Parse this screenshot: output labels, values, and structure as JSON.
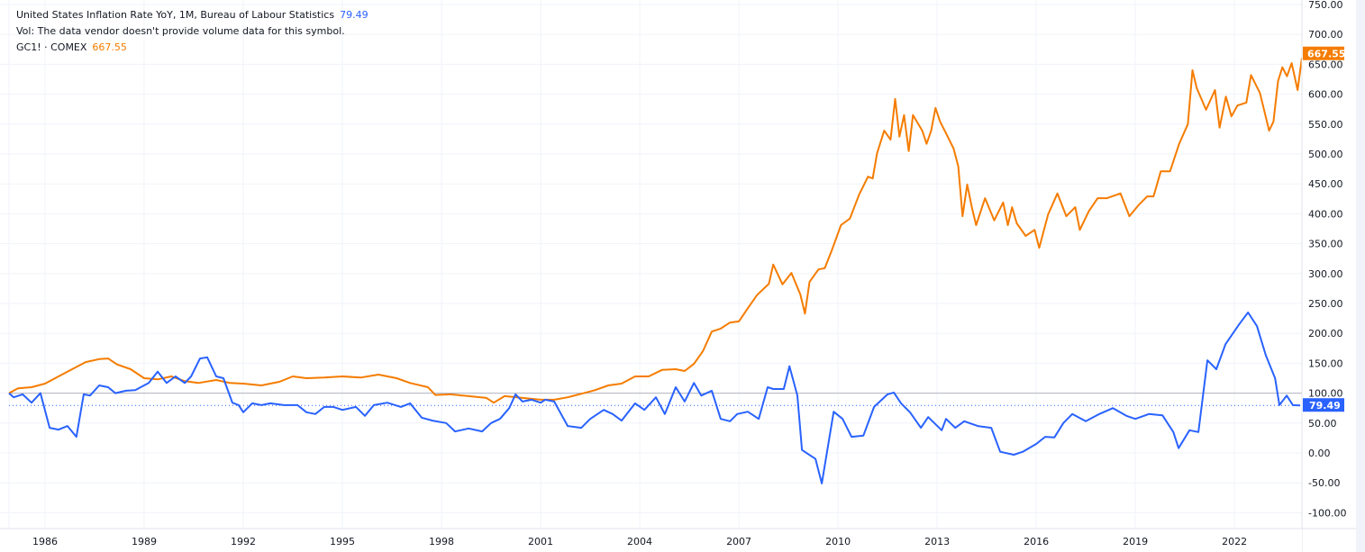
{
  "legend": {
    "series1_title": "United States Inflation Rate YoY, 1M, Bureau of Labour Statistics",
    "series1_value": "79.49",
    "volume_note": "Vol: The data vendor doesn't provide volume data for this symbol.",
    "series2_title": "GC1! · COMEX",
    "series2_value": "667.55"
  },
  "colors": {
    "inflation": "#2962ff",
    "gold": "#f57c00",
    "grid": "#f0f3fa",
    "baseline": "#b2b5be",
    "axis_text": "#131722"
  },
  "price_axis": {
    "ticks": [
      "750.00",
      "700.00",
      "650.00",
      "600.00",
      "550.00",
      "500.00",
      "450.00",
      "400.00",
      "350.00",
      "300.00",
      "250.00",
      "200.00",
      "150.00",
      "100.00",
      "50.00",
      "0.00",
      "-50.00",
      "-100.00"
    ],
    "badge_gold": "667.55",
    "badge_inflation": "79.49"
  },
  "time_axis": {
    "ticks": [
      "1986",
      "1989",
      "1992",
      "1995",
      "1998",
      "2001",
      "2004",
      "2007",
      "2010",
      "2013",
      "2016",
      "2019",
      "2022"
    ]
  },
  "chart_data": {
    "type": "line",
    "title": "United States Inflation Rate YoY vs GC1! (COMEX Gold), normalized to 100",
    "xlabel": "",
    "ylabel": "",
    "ylim": [
      -100,
      750
    ],
    "xlim": [
      1984.9,
      2024.0
    ],
    "grid": true,
    "baseline": 100,
    "legend_position": "top-left",
    "series": [
      {
        "name": "United States Inflation Rate YoY, 1M, Bureau of Labour Statistics",
        "color": "#2962ff",
        "last_value": 79.49,
        "points": [
          [
            1984.91,
            100
          ],
          [
            1985.05,
            93
          ],
          [
            1985.32,
            98
          ],
          [
            1985.59,
            84
          ],
          [
            1985.86,
            100
          ],
          [
            1986.14,
            42
          ],
          [
            1986.41,
            39
          ],
          [
            1986.68,
            45
          ],
          [
            1986.95,
            27
          ],
          [
            1987.17,
            98
          ],
          [
            1987.36,
            96
          ],
          [
            1987.64,
            113
          ],
          [
            1987.91,
            110
          ],
          [
            1988.13,
            100
          ],
          [
            1988.45,
            104
          ],
          [
            1988.73,
            105
          ],
          [
            1989.14,
            117
          ],
          [
            1989.41,
            136
          ],
          [
            1989.68,
            117
          ],
          [
            1989.95,
            128
          ],
          [
            1990.23,
            117
          ],
          [
            1990.42,
            128
          ],
          [
            1990.69,
            158
          ],
          [
            1990.91,
            160
          ],
          [
            1991.18,
            128
          ],
          [
            1991.4,
            125
          ],
          [
            1991.67,
            84
          ],
          [
            1991.86,
            80
          ],
          [
            1992.0,
            68
          ],
          [
            1992.27,
            83
          ],
          [
            1992.55,
            80
          ],
          [
            1992.82,
            83
          ],
          [
            1993.23,
            80
          ],
          [
            1993.64,
            80
          ],
          [
            1993.91,
            68
          ],
          [
            1994.18,
            65
          ],
          [
            1994.45,
            77
          ],
          [
            1994.73,
            77
          ],
          [
            1995.0,
            72
          ],
          [
            1995.41,
            77
          ],
          [
            1995.68,
            62
          ],
          [
            1995.95,
            80
          ],
          [
            1996.36,
            84
          ],
          [
            1996.77,
            77
          ],
          [
            1997.05,
            83
          ],
          [
            1997.4,
            59
          ],
          [
            1997.73,
            54
          ],
          [
            1998.14,
            50
          ],
          [
            1998.41,
            36
          ],
          [
            1998.82,
            41
          ],
          [
            1999.23,
            36
          ],
          [
            1999.5,
            50
          ],
          [
            1999.77,
            57
          ],
          [
            2000.05,
            75
          ],
          [
            2000.24,
            98
          ],
          [
            2000.45,
            86
          ],
          [
            2000.73,
            89
          ],
          [
            2001.0,
            84
          ],
          [
            2001.14,
            89
          ],
          [
            2001.41,
            86
          ],
          [
            2001.55,
            72
          ],
          [
            2001.82,
            45
          ],
          [
            2002.23,
            42
          ],
          [
            2002.5,
            57
          ],
          [
            2002.91,
            72
          ],
          [
            2003.18,
            65
          ],
          [
            2003.45,
            54
          ],
          [
            2003.86,
            83
          ],
          [
            2004.14,
            72
          ],
          [
            2004.49,
            93
          ],
          [
            2004.76,
            65
          ],
          [
            2005.09,
            110
          ],
          [
            2005.36,
            86
          ],
          [
            2005.64,
            117
          ],
          [
            2005.86,
            96
          ],
          [
            2006.18,
            104
          ],
          [
            2006.45,
            57
          ],
          [
            2006.73,
            53
          ],
          [
            2006.95,
            65
          ],
          [
            2007.27,
            69
          ],
          [
            2007.6,
            57
          ],
          [
            2007.87,
            110
          ],
          [
            2008.04,
            107
          ],
          [
            2008.36,
            107
          ],
          [
            2008.53,
            145
          ],
          [
            2008.77,
            96
          ],
          [
            2008.91,
            5
          ],
          [
            2009.32,
            -10
          ],
          [
            2009.51,
            -51
          ],
          [
            2009.87,
            69
          ],
          [
            2010.14,
            57
          ],
          [
            2010.41,
            27
          ],
          [
            2010.77,
            29
          ],
          [
            2011.09,
            77
          ],
          [
            2011.5,
            98
          ],
          [
            2011.69,
            101
          ],
          [
            2011.91,
            83
          ],
          [
            2012.18,
            68
          ],
          [
            2012.51,
            42
          ],
          [
            2012.73,
            60
          ],
          [
            2013.14,
            38
          ],
          [
            2013.27,
            57
          ],
          [
            2013.55,
            42
          ],
          [
            2013.82,
            53
          ],
          [
            2014.23,
            45
          ],
          [
            2014.64,
            42
          ],
          [
            2014.91,
            2
          ],
          [
            2015.32,
            -3
          ],
          [
            2015.59,
            2
          ],
          [
            2016.0,
            15
          ],
          [
            2016.27,
            27
          ],
          [
            2016.55,
            26
          ],
          [
            2016.82,
            50
          ],
          [
            2017.09,
            65
          ],
          [
            2017.5,
            53
          ],
          [
            2017.91,
            65
          ],
          [
            2018.32,
            75
          ],
          [
            2018.73,
            62
          ],
          [
            2019.0,
            57
          ],
          [
            2019.41,
            65
          ],
          [
            2019.82,
            63
          ],
          [
            2020.15,
            35
          ],
          [
            2020.31,
            8
          ],
          [
            2020.64,
            38
          ],
          [
            2020.91,
            35
          ],
          [
            2021.18,
            155
          ],
          [
            2021.45,
            140
          ],
          [
            2021.73,
            182
          ],
          [
            2022.14,
            215
          ],
          [
            2022.41,
            235
          ],
          [
            2022.68,
            212
          ],
          [
            2022.95,
            163
          ],
          [
            2023.23,
            125
          ],
          [
            2023.36,
            80
          ],
          [
            2023.58,
            96
          ],
          [
            2023.77,
            80
          ],
          [
            2023.99,
            79.49
          ]
        ]
      },
      {
        "name": "GC1! · COMEX",
        "color": "#f57c00",
        "last_value": 667.55,
        "points": [
          [
            1984.91,
            100
          ],
          [
            1985.18,
            108
          ],
          [
            1985.59,
            110
          ],
          [
            1986.0,
            116
          ],
          [
            1986.41,
            128
          ],
          [
            1986.82,
            140
          ],
          [
            1987.23,
            152
          ],
          [
            1987.64,
            157
          ],
          [
            1987.91,
            158
          ],
          [
            1988.18,
            148
          ],
          [
            1988.59,
            140
          ],
          [
            1989.0,
            125
          ],
          [
            1989.41,
            123
          ],
          [
            1989.82,
            128
          ],
          [
            1990.23,
            120
          ],
          [
            1990.64,
            117
          ],
          [
            1991.18,
            122
          ],
          [
            1991.59,
            117
          ],
          [
            1992.0,
            116
          ],
          [
            1992.55,
            113
          ],
          [
            1993.09,
            119
          ],
          [
            1993.5,
            128
          ],
          [
            1993.91,
            125
          ],
          [
            1994.45,
            126
          ],
          [
            1995.0,
            128
          ],
          [
            1995.55,
            126
          ],
          [
            1996.09,
            131
          ],
          [
            1996.64,
            125
          ],
          [
            1997.05,
            117
          ],
          [
            1997.59,
            110
          ],
          [
            1997.81,
            97
          ],
          [
            1998.27,
            98
          ],
          [
            1998.82,
            95
          ],
          [
            1999.36,
            92
          ],
          [
            1999.58,
            84
          ],
          [
            1999.91,
            95
          ],
          [
            2000.45,
            92
          ],
          [
            2001.0,
            89
          ],
          [
            2001.41,
            89
          ],
          [
            2001.82,
            93
          ],
          [
            2002.23,
            99
          ],
          [
            2002.64,
            105
          ],
          [
            2003.05,
            113
          ],
          [
            2003.45,
            116
          ],
          [
            2003.86,
            128
          ],
          [
            2004.27,
            128
          ],
          [
            2004.68,
            139
          ],
          [
            2005.09,
            140
          ],
          [
            2005.36,
            137
          ],
          [
            2005.64,
            149
          ],
          [
            2005.91,
            170
          ],
          [
            2006.18,
            203
          ],
          [
            2006.45,
            208
          ],
          [
            2006.73,
            218
          ],
          [
            2007.0,
            220
          ],
          [
            2007.27,
            242
          ],
          [
            2007.55,
            264
          ],
          [
            2007.91,
            283
          ],
          [
            2008.04,
            315
          ],
          [
            2008.32,
            282
          ],
          [
            2008.59,
            301
          ],
          [
            2008.86,
            265
          ],
          [
            2009.0,
            233
          ],
          [
            2009.14,
            286
          ],
          [
            2009.41,
            307
          ],
          [
            2009.6,
            309
          ],
          [
            2009.82,
            340
          ],
          [
            2010.09,
            381
          ],
          [
            2010.36,
            392
          ],
          [
            2010.64,
            432
          ],
          [
            2010.91,
            462
          ],
          [
            2011.05,
            459
          ],
          [
            2011.18,
            501
          ],
          [
            2011.4,
            539
          ],
          [
            2011.59,
            524
          ],
          [
            2011.73,
            592
          ],
          [
            2011.86,
            529
          ],
          [
            2012.0,
            565
          ],
          [
            2012.14,
            505
          ],
          [
            2012.27,
            565
          ],
          [
            2012.55,
            539
          ],
          [
            2012.68,
            517
          ],
          [
            2012.82,
            539
          ],
          [
            2012.95,
            577
          ],
          [
            2013.09,
            554
          ],
          [
            2013.23,
            539
          ],
          [
            2013.5,
            509
          ],
          [
            2013.64,
            479
          ],
          [
            2013.77,
            396
          ],
          [
            2013.91,
            449
          ],
          [
            2014.05,
            411
          ],
          [
            2014.18,
            381
          ],
          [
            2014.45,
            426
          ],
          [
            2014.73,
            389
          ],
          [
            2015.0,
            419
          ],
          [
            2015.14,
            381
          ],
          [
            2015.27,
            411
          ],
          [
            2015.41,
            384
          ],
          [
            2015.68,
            363
          ],
          [
            2015.95,
            373
          ],
          [
            2016.09,
            343
          ],
          [
            2016.36,
            399
          ],
          [
            2016.64,
            434
          ],
          [
            2016.91,
            396
          ],
          [
            2017.18,
            411
          ],
          [
            2017.32,
            373
          ],
          [
            2017.59,
            404
          ],
          [
            2017.86,
            426
          ],
          [
            2018.14,
            426
          ],
          [
            2018.55,
            434
          ],
          [
            2018.82,
            396
          ],
          [
            2019.09,
            414
          ],
          [
            2019.36,
            429
          ],
          [
            2019.55,
            429
          ],
          [
            2019.77,
            471
          ],
          [
            2020.05,
            471
          ],
          [
            2020.32,
            516
          ],
          [
            2020.59,
            550
          ],
          [
            2020.73,
            640
          ],
          [
            2020.86,
            610
          ],
          [
            2021.14,
            574
          ],
          [
            2021.41,
            607
          ],
          [
            2021.55,
            544
          ],
          [
            2021.74,
            596
          ],
          [
            2021.91,
            563
          ],
          [
            2022.09,
            581
          ],
          [
            2022.36,
            586
          ],
          [
            2022.5,
            632
          ],
          [
            2022.77,
            602
          ],
          [
            2023.05,
            539
          ],
          [
            2023.18,
            554
          ],
          [
            2023.32,
            622
          ],
          [
            2023.45,
            645
          ],
          [
            2023.59,
            630
          ],
          [
            2023.73,
            652
          ],
          [
            2023.91,
            607
          ],
          [
            2024.04,
            660
          ],
          [
            2024.2,
            667.55
          ]
        ]
      }
    ]
  }
}
